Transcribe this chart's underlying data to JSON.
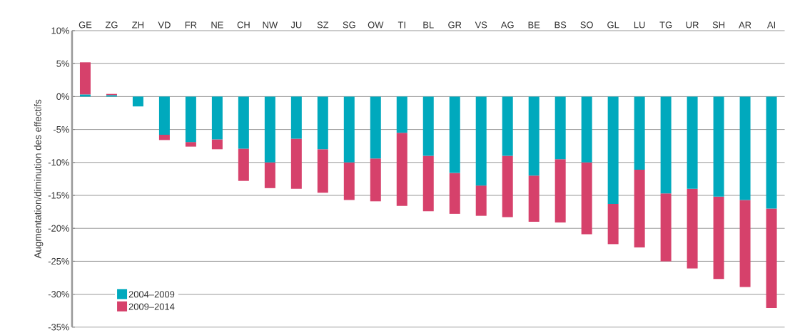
{
  "chart_data": {
    "type": "bar",
    "stacked": true,
    "ylabel": "Augmentation/diminution des effectifs",
    "categories": [
      "GE",
      "ZG",
      "ZH",
      "VD",
      "FR",
      "NE",
      "CH",
      "NW",
      "JU",
      "SZ",
      "SG",
      "OW",
      "TI",
      "BL",
      "GR",
      "VS",
      "AG",
      "BE",
      "BS",
      "SO",
      "GL",
      "LU",
      "TG",
      "UR",
      "SH",
      "AR",
      "AI"
    ],
    "series": [
      {
        "name": "2004–2009",
        "color": "#00a9bd",
        "values": [
          0.3,
          0.2,
          -1.5,
          -5.8,
          -6.9,
          -6.5,
          -7.9,
          -10.0,
          -6.4,
          -8.0,
          -10.0,
          -9.4,
          -5.5,
          -9.0,
          -11.6,
          -13.5,
          -9.0,
          -12.0,
          -9.5,
          -10.0,
          -16.3,
          -11.1,
          -14.7,
          -14.0,
          -15.2,
          -15.7,
          -17.0
        ]
      },
      {
        "name": "2009–2014",
        "color": "#d6416b",
        "values": [
          4.9,
          0.2,
          0,
          -0.8,
          -0.7,
          -1.5,
          -4.9,
          -3.9,
          -7.6,
          -6.6,
          -5.7,
          -6.5,
          -11.1,
          -8.4,
          -6.2,
          -4.6,
          -9.3,
          -7.0,
          -9.6,
          -10.9,
          -6.1,
          -11.8,
          -10.3,
          -12.1,
          -12.5,
          -13.2,
          -15.1
        ]
      }
    ],
    "ylim": [
      -35,
      10
    ],
    "yticks": [
      {
        "value": 10,
        "label": "10%"
      },
      {
        "value": 5,
        "label": "5%"
      },
      {
        "value": 0,
        "label": "0%"
      },
      {
        "value": -5,
        "label": "-5%"
      },
      {
        "value": -10,
        "label": "-10%"
      },
      {
        "value": -15,
        "label": "-15%"
      },
      {
        "value": -20,
        "label": "-20%"
      },
      {
        "value": -25,
        "label": "-25%"
      },
      {
        "value": -30,
        "label": "-30%"
      },
      {
        "value": -35,
        "label": "-35%"
      }
    ],
    "grid": "y",
    "legend": "bottom left"
  }
}
